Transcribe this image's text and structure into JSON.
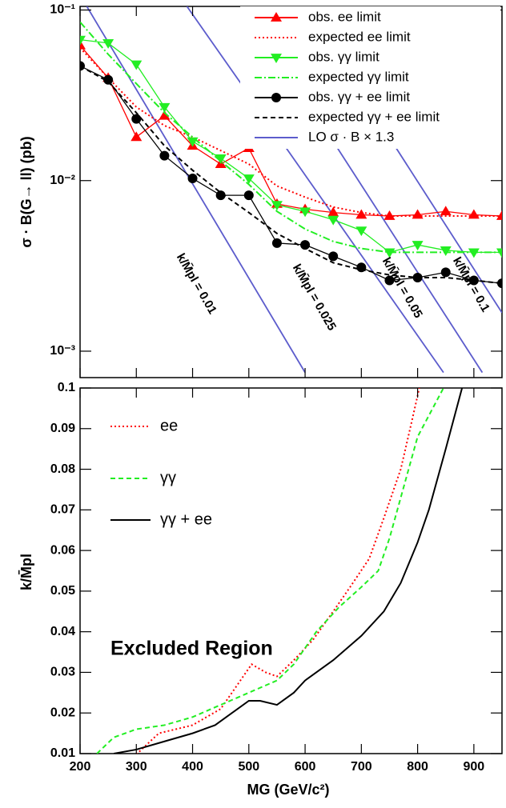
{
  "chart_data": [
    {
      "type": "line",
      "ylabel": "σ · B(G→ ll) (pb)",
      "log_y": true,
      "x": [
        200,
        250,
        300,
        350,
        400,
        450,
        500,
        550,
        600,
        650,
        700,
        750,
        800,
        850,
        900,
        950
      ],
      "xlim": [
        200,
        950
      ],
      "ylim": [
        0.0007,
        0.105
      ],
      "yticks": [
        {
          "value": 0.001,
          "label": "10⁻³"
        },
        {
          "value": 0.01,
          "label": "10⁻²"
        },
        {
          "value": 0.1,
          "label": "10⁻¹"
        }
      ],
      "legend": "upper right",
      "series": [
        {
          "name": "obs. ee limit",
          "color": "#ff0000",
          "style": "solid",
          "marker": "triangle-up",
          "values": [
            0.062,
            0.04,
            0.018,
            0.024,
            0.016,
            0.0125,
            0.0155,
            0.0073,
            0.0068,
            0.0065,
            0.0063,
            0.0062,
            0.0063,
            0.0066,
            0.0063,
            0.0062
          ]
        },
        {
          "name": "expected ee limit",
          "color": "#ff0000",
          "style": "dotted",
          "values": [
            0.06,
            0.04,
            0.027,
            0.021,
            0.018,
            0.015,
            0.0125,
            0.0093,
            0.008,
            0.007,
            0.0065,
            0.0062,
            0.0062,
            0.0062,
            0.0062,
            0.0062
          ]
        },
        {
          "name": "obs. γγ limit",
          "color": "#22ee22",
          "style": "solid",
          "marker": "triangle-down",
          "values": [
            0.067,
            0.064,
            0.048,
            0.027,
            0.017,
            0.0135,
            0.0103,
            0.0072,
            0.0066,
            0.0059,
            0.0051,
            0.0038,
            0.0042,
            0.0039,
            0.0038,
            0.0038
          ]
        },
        {
          "name": "expected γγ limit",
          "color": "#22ee22",
          "style": "dashdot",
          "values": [
            0.085,
            0.055,
            0.037,
            0.025,
            0.018,
            0.013,
            0.0095,
            0.0066,
            0.0052,
            0.0044,
            0.004,
            0.0038,
            0.0038,
            0.0038,
            0.0038,
            0.0038
          ]
        },
        {
          "name": "obs. γγ + ee limit",
          "color": "#000000",
          "style": "solid",
          "marker": "circle",
          "values": [
            0.047,
            0.039,
            0.023,
            0.014,
            0.0103,
            0.0082,
            0.0082,
            0.0043,
            0.0042,
            0.0036,
            0.0031,
            0.0026,
            0.0027,
            0.0029,
            0.0026,
            0.0025
          ]
        },
        {
          "name": "expected γγ + ee limit",
          "color": "#000000",
          "style": "dashed",
          "values": [
            0.047,
            0.038,
            0.025,
            0.016,
            0.0115,
            0.0085,
            0.0065,
            0.0049,
            0.004,
            0.0033,
            0.003,
            0.0028,
            0.0027,
            0.0027,
            0.0026,
            0.0025
          ]
        }
      ],
      "theory": {
        "name": "LO σ · B × 1.3",
        "color": "#5c5ccc",
        "lines": [
          {
            "label": "k/M̄pl = 0.01",
            "x": [
              212,
              600
            ],
            "values": [
              0.105,
              0.00075
            ]
          },
          {
            "label": "k/M̄pl = 0.025",
            "x": [
              390,
              846
            ],
            "values": [
              0.105,
              0.00075
            ]
          },
          {
            "label": "k/M̄pl = 0.05",
            "x": [
              495,
              915
            ],
            "values": [
              0.105,
              0.00075
            ]
          },
          {
            "label": "k/M̄pl = 0.1",
            "x": [
              600,
              950
            ],
            "values": [
              0.105,
              0.00168
            ]
          }
        ]
      }
    },
    {
      "type": "line",
      "xlabel": "MG (GeV/c²)",
      "ylabel": "k/M̄pl",
      "xlim": [
        200,
        950
      ],
      "xticks": [
        200,
        300,
        400,
        500,
        600,
        700,
        800,
        900
      ],
      "ylim": [
        0.01,
        0.1
      ],
      "yticks": [
        0.01,
        0.02,
        0.03,
        0.04,
        0.05,
        0.06,
        0.07,
        0.08,
        0.09,
        0.1
      ],
      "annotation": "Excluded Region",
      "legend": "upper left",
      "series": [
        {
          "name": "ee",
          "color": "#ff0000",
          "style": "dotted",
          "x": [
            300,
            340,
            400,
            450,
            480,
            505,
            530,
            550,
            580,
            614,
            650,
            680,
            714,
            740,
            770,
            790,
            803
          ],
          "values": [
            0.0098,
            0.015,
            0.017,
            0.021,
            0.027,
            0.032,
            0.03,
            0.029,
            0.033,
            0.038,
            0.045,
            0.051,
            0.058,
            0.068,
            0.08,
            0.092,
            0.1
          ]
        },
        {
          "name": "γγ",
          "color": "#22ee22",
          "style": "dashed",
          "x": [
            230,
            260,
            300,
            350,
            400,
            450,
            500,
            550,
            580,
            620,
            660,
            700,
            730,
            750,
            780,
            800,
            846
          ],
          "values": [
            0.01,
            0.014,
            0.016,
            0.017,
            0.019,
            0.022,
            0.025,
            0.028,
            0.032,
            0.04,
            0.046,
            0.051,
            0.055,
            0.063,
            0.078,
            0.088,
            0.1
          ]
        },
        {
          "name": "γγ + ee",
          "color": "#000000",
          "style": "solid",
          "x": [
            260,
            300,
            350,
            400,
            440,
            470,
            500,
            520,
            550,
            580,
            600,
            650,
            700,
            740,
            770,
            800,
            820,
            850,
            879
          ],
          "values": [
            0.01,
            0.011,
            0.013,
            0.015,
            0.017,
            0.02,
            0.023,
            0.023,
            0.022,
            0.025,
            0.028,
            0.033,
            0.039,
            0.045,
            0.052,
            0.062,
            0.07,
            0.085,
            0.1
          ]
        }
      ]
    }
  ]
}
